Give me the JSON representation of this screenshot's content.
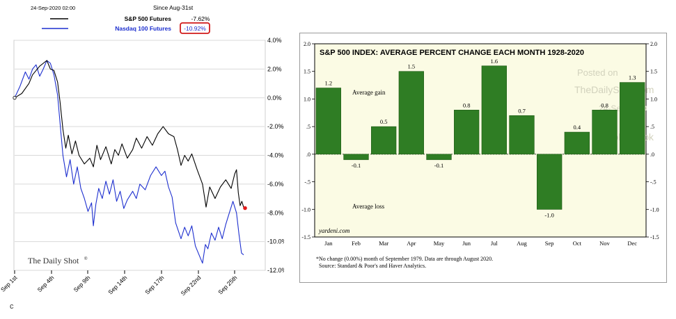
{
  "left": {
    "timestamp": "24-Sep-2020 02:00",
    "since_label": "Since Aug-31st",
    "watermark": "The Daily Shot",
    "watermark_mark": "®",
    "corner_mark": "c",
    "chart_data": {
      "type": "line",
      "x_tick_labels": [
        "Sep 1st",
        "Sep 4th",
        "Sep 9th",
        "Sep 14th",
        "Sep 17th",
        "Sep 22nd",
        "Sep 25th"
      ],
      "y_tick_labels": [
        "4.0%",
        "2.0%",
        "0.0%",
        "-2.0%",
        "-4.0%",
        "-6.0%",
        "-8.0%",
        "-10.0%",
        "-12.0%"
      ],
      "ylim": [
        -12,
        4
      ],
      "grid": true,
      "legend_position": "top",
      "series": [
        {
          "name": "S&P 500 Futures",
          "change": "-7.62%",
          "color": "#000000",
          "points": [
            [
              0,
              0
            ],
            [
              2,
              0.3
            ],
            [
              4,
              1.0
            ],
            [
              5,
              1.6
            ],
            [
              7,
              2.2
            ],
            [
              9,
              2.6
            ],
            [
              10,
              2.0
            ],
            [
              11,
              1.9
            ],
            [
              12,
              1.1
            ],
            [
              12.7,
              -0.3
            ],
            [
              13.5,
              -2.2
            ],
            [
              14.3,
              -3.5
            ],
            [
              15,
              -2.6
            ],
            [
              16,
              -3.9
            ],
            [
              17,
              -3.0
            ],
            [
              18,
              -4.0
            ],
            [
              19.5,
              -4.6
            ],
            [
              21,
              -4.2
            ],
            [
              22,
              -4.8
            ],
            [
              23,
              -3.3
            ],
            [
              24,
              -4.3
            ],
            [
              25.5,
              -3.4
            ],
            [
              27,
              -4.6
            ],
            [
              28,
              -3.6
            ],
            [
              29,
              -4.0
            ],
            [
              30,
              -3.2
            ],
            [
              31.5,
              -4.2
            ],
            [
              33,
              -3.6
            ],
            [
              34,
              -2.8
            ],
            [
              35.5,
              -3.5
            ],
            [
              37,
              -2.7
            ],
            [
              38.5,
              -3.3
            ],
            [
              40,
              -2.5
            ],
            [
              41.5,
              -2.0
            ],
            [
              43,
              -2.5
            ],
            [
              44.5,
              -2.7
            ],
            [
              45.5,
              -3.6
            ],
            [
              46.5,
              -4.7
            ],
            [
              47.5,
              -4.0
            ],
            [
              48.5,
              -4.4
            ],
            [
              49.5,
              -3.9
            ],
            [
              51,
              -5.0
            ],
            [
              52.5,
              -6.0
            ],
            [
              53.5,
              -7.6
            ],
            [
              54.5,
              -6.2
            ],
            [
              56,
              -7.0
            ],
            [
              57.5,
              -6.2
            ],
            [
              59,
              -5.7
            ],
            [
              60.5,
              -6.3
            ],
            [
              61.5,
              -5.3
            ],
            [
              62,
              -5.0
            ],
            [
              62.5,
              -6.6
            ],
            [
              63,
              -7.5
            ],
            [
              63.5,
              -7.2
            ],
            [
              64,
              -7.62
            ]
          ]
        },
        {
          "name": "Nasdaq 100 Futures",
          "change": "-10.92%",
          "color": "#1d2fcf",
          "points": [
            [
              0,
              0
            ],
            [
              1.5,
              0.8
            ],
            [
              3,
              1.8
            ],
            [
              4,
              1.3
            ],
            [
              5,
              2.0
            ],
            [
              6,
              2.3
            ],
            [
              7,
              1.5
            ],
            [
              8,
              2.0
            ],
            [
              9,
              2.6
            ],
            [
              10,
              2.4
            ],
            [
              11,
              1.6
            ],
            [
              12,
              0.2
            ],
            [
              13,
              -2.6
            ],
            [
              13.5,
              -4.0
            ],
            [
              14.5,
              -5.5
            ],
            [
              15.5,
              -4.3
            ],
            [
              16.5,
              -6.0
            ],
            [
              17.5,
              -4.8
            ],
            [
              18.5,
              -6.3
            ],
            [
              19.5,
              -7.0
            ],
            [
              20.5,
              -7.9
            ],
            [
              21.5,
              -7.3
            ],
            [
              22,
              -8.9
            ],
            [
              22.7,
              -7.4
            ],
            [
              23.5,
              -6.3
            ],
            [
              24.5,
              -7.0
            ],
            [
              25.5,
              -5.8
            ],
            [
              26.5,
              -6.7
            ],
            [
              27.5,
              -5.7
            ],
            [
              28.5,
              -7.2
            ],
            [
              29.5,
              -6.5
            ],
            [
              30.5,
              -7.7
            ],
            [
              31.5,
              -7.1
            ],
            [
              33,
              -6.5
            ],
            [
              34,
              -7.0
            ],
            [
              35,
              -6.0
            ],
            [
              36.5,
              -6.4
            ],
            [
              38,
              -5.4
            ],
            [
              39.5,
              -4.8
            ],
            [
              41,
              -5.4
            ],
            [
              42,
              -5.1
            ],
            [
              43,
              -6.2
            ],
            [
              44,
              -6.9
            ],
            [
              45,
              -8.7
            ],
            [
              46.5,
              -9.8
            ],
            [
              47.5,
              -9.0
            ],
            [
              48.5,
              -9.6
            ],
            [
              49.5,
              -8.9
            ],
            [
              50.5,
              -10.3
            ],
            [
              51.5,
              -10.9
            ],
            [
              52.5,
              -11.5
            ],
            [
              53.3,
              -10.2
            ],
            [
              54,
              -10.5
            ],
            [
              55,
              -9.4
            ],
            [
              56,
              -9.9
            ],
            [
              57,
              -9.0
            ],
            [
              58,
              -9.8
            ],
            [
              59,
              -8.8
            ],
            [
              60,
              -8.0
            ],
            [
              61,
              -7.2
            ],
            [
              62,
              -8.0
            ],
            [
              62.7,
              -9.5
            ],
            [
              63.4,
              -10.8
            ],
            [
              64,
              -10.92
            ]
          ]
        }
      ]
    }
  },
  "right": {
    "attribution_lines": [
      "Posted on",
      "TheDailyShot.com",
      "24-Sep-2020",
      "@SoberLook"
    ],
    "source_brand": "yardeni.com",
    "footnote_lines": [
      "*No change (0.00%) month of September 1979. Data are through August 2020.",
      "Source: Standard & Poor's and Haver Analytics."
    ],
    "chart_data": {
      "type": "bar",
      "title": "S&P 500 INDEX: AVERAGE PERCENT CHANGE EACH MONTH 1928-2020",
      "categories": [
        "Jan",
        "Feb",
        "Mar",
        "Apr",
        "May",
        "Jun",
        "Jul",
        "Aug",
        "Sep",
        "Oct",
        "Nov",
        "Dec"
      ],
      "values": [
        1.2,
        -0.1,
        0.5,
        1.5,
        -0.1,
        0.8,
        1.6,
        0.7,
        -1.0,
        0.4,
        0.8,
        1.3
      ],
      "value_labels": [
        "1.2",
        "-0.1",
        "0.5",
        "1.5",
        "-0.1",
        "0.8",
        "1.6",
        "0.7",
        "-1.0",
        "0.4",
        "0.8",
        "1.3"
      ],
      "ylim": [
        -1.5,
        2.0
      ],
      "y_tick_labels": [
        "2.0",
        "1.5",
        "1.0",
        ".5",
        ".0",
        "-.5",
        "-1.0",
        "-1.5"
      ],
      "annotations": [
        "Average gain",
        "Average loss"
      ],
      "bar_color": "#2f7d24",
      "grid": false
    }
  }
}
